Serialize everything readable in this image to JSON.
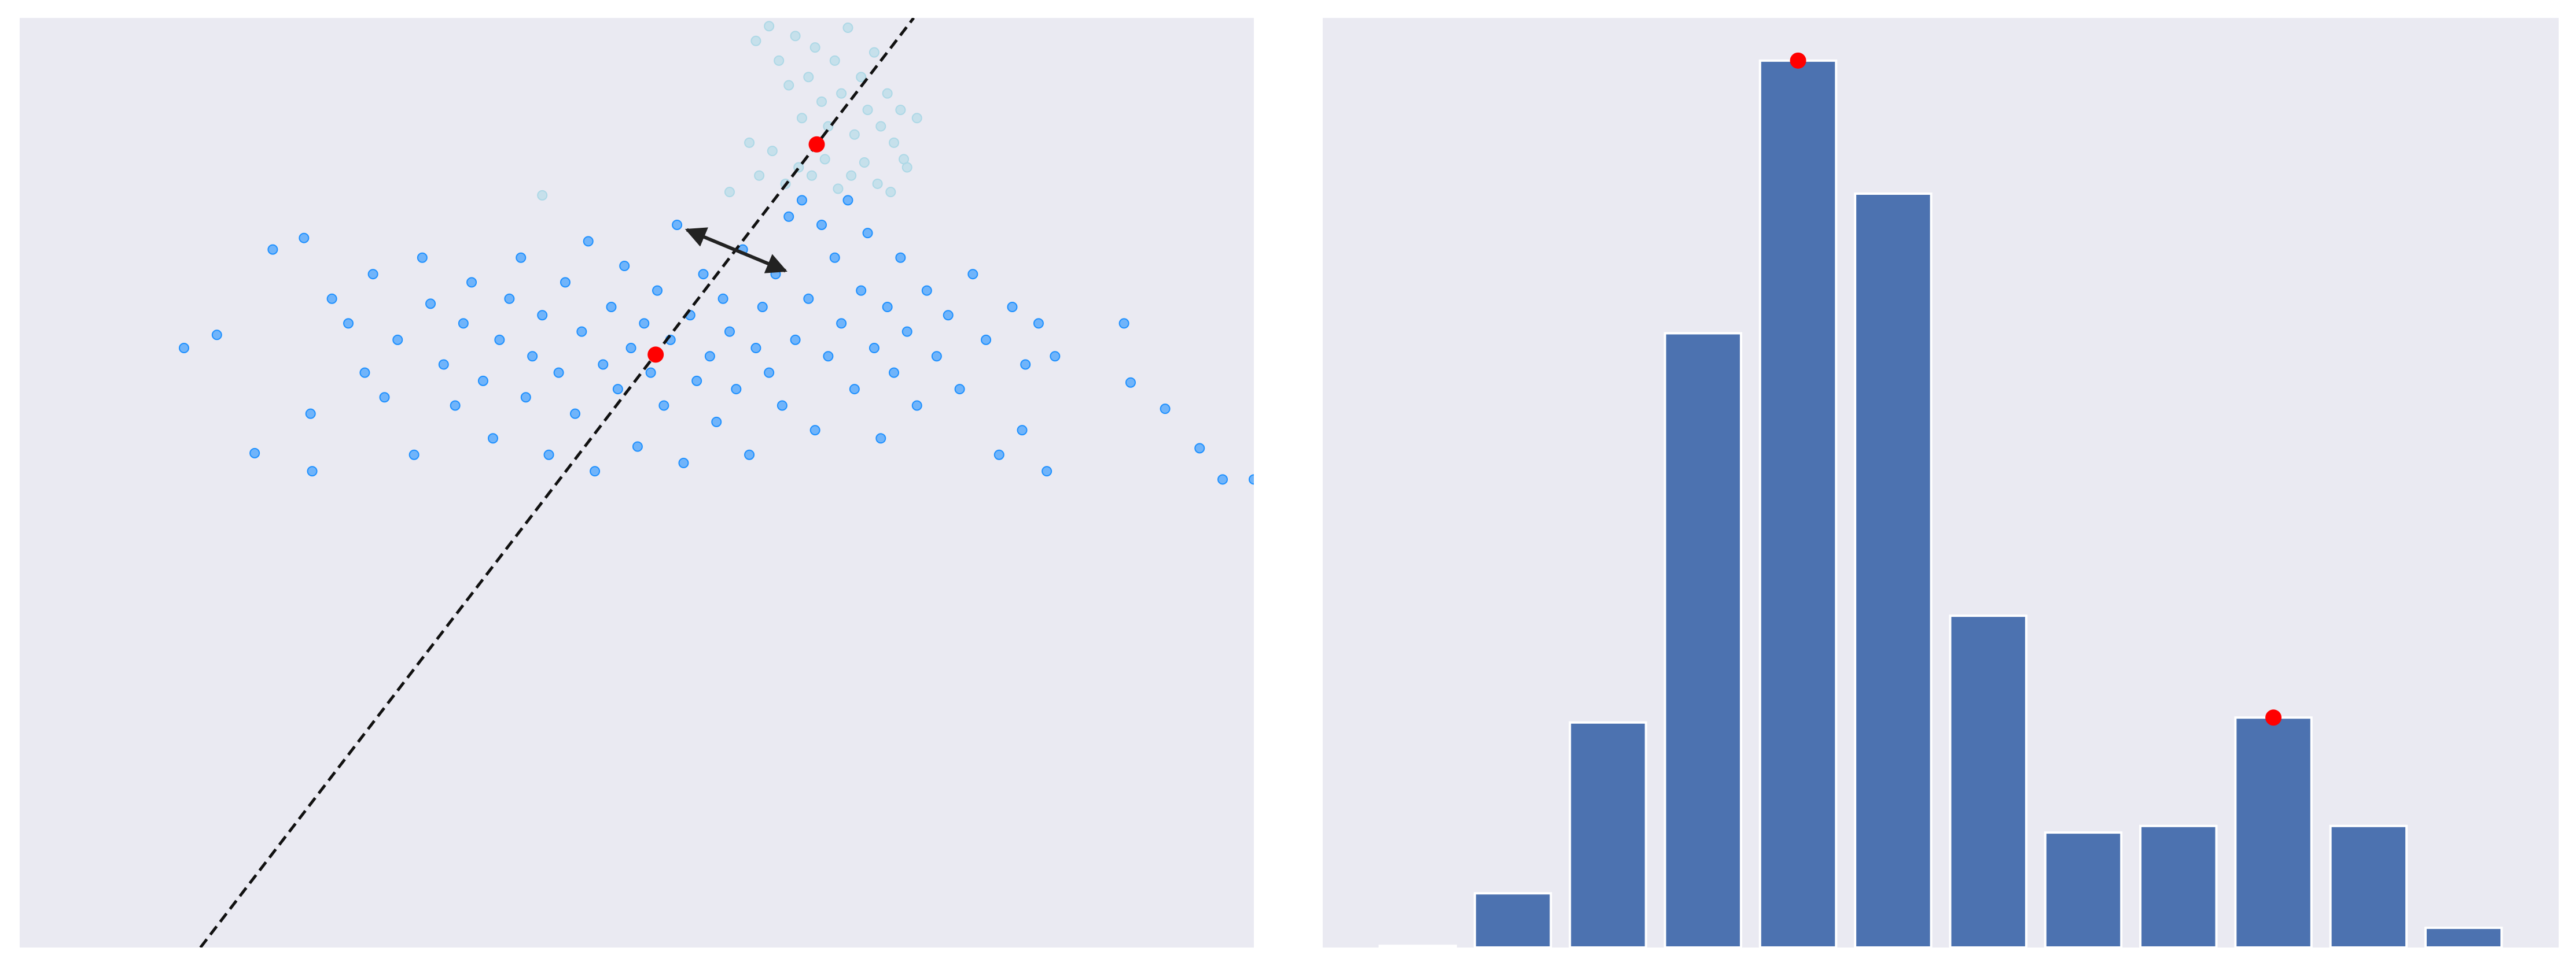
{
  "chart_data": [
    {
      "type": "scatter",
      "background": "#eaeaf2",
      "xlim": [
        0,
        751
      ],
      "ylim": [
        0,
        566
      ],
      "series": [
        {
          "color": "#add8e6",
          "x": [
            448,
            456,
            462,
            468,
            472,
            476,
            480,
            484,
            488,
            492,
            496,
            500,
            504,
            508,
            512,
            516,
            520,
            524,
            528,
            532,
            536,
            540,
            444,
            450,
            458,
            466,
            474,
            482,
            490,
            498,
            506,
            514,
            522,
            530,
            538,
            546,
            318,
            432
          ],
          "y": [
            552,
            561,
            540,
            525,
            555,
            505,
            530,
            548,
            515,
            500,
            540,
            520,
            560,
            495,
            530,
            510,
            545,
            500,
            520,
            490,
            510,
            475,
            490,
            470,
            485,
            465,
            475,
            470,
            480,
            462,
            470,
            478,
            465,
            460,
            480,
            505,
            458,
            460
          ]
        },
        {
          "color": "#1e90ff",
          "x": [
            100,
            120,
            143,
            154,
            173,
            177,
            178,
            190,
            200,
            210,
            215,
            222,
            230,
            240,
            245,
            250,
            258,
            265,
            270,
            275,
            282,
            288,
            292,
            298,
            305,
            308,
            312,
            318,
            322,
            328,
            332,
            338,
            342,
            346,
            350,
            355,
            360,
            364,
            368,
            372,
            376,
            380,
            384,
            388,
            392,
            396,
            400,
            404,
            408,
            412,
            416,
            420,
            424,
            428,
            432,
            436,
            440,
            444,
            448,
            452,
            456,
            460,
            464,
            468,
            472,
            476,
            480,
            484,
            488,
            492,
            496,
            500,
            504,
            508,
            512,
            516,
            520,
            524,
            528,
            532,
            536,
            540,
            546,
            552,
            558,
            565,
            572,
            580,
            588,
            596,
            604,
            612,
            620,
            630,
            610,
            625,
            672,
            676,
            697,
            718,
            732,
            751
          ],
          "y": [
            365,
            373,
            301,
            425,
            432,
            325,
            290,
            395,
            380,
            350,
            410,
            335,
            370,
            300,
            420,
            392,
            355,
            330,
            380,
            405,
            345,
            310,
            370,
            395,
            420,
            335,
            360,
            385,
            300,
            350,
            405,
            325,
            375,
            430,
            290,
            355,
            390,
            340,
            415,
            365,
            305,
            380,
            350,
            400,
            330,
            370,
            440,
            295,
            385,
            345,
            410,
            360,
            320,
            395,
            375,
            340,
            425,
            300,
            365,
            390,
            350,
            410,
            330,
            445,
            370,
            455,
            395,
            315,
            440,
            360,
            420,
            380,
            455,
            340,
            400,
            435,
            365,
            310,
            390,
            350,
            420,
            375,
            330,
            400,
            360,
            385,
            340,
            410,
            370,
            300,
            390,
            355,
            380,
            360,
            315,
            290,
            380,
            344,
            328,
            304,
            285,
            285
          ]
        }
      ],
      "lines": [
        {
          "color": "#111111",
          "style": "dashed",
          "x": [
            110,
            544
          ],
          "y": [
            0,
            566
          ]
        }
      ],
      "arrows": [
        {
          "color": "#222222",
          "x": [
            406,
            466
          ],
          "y": [
            437,
            412
          ]
        }
      ],
      "highlight": {
        "color": "#ff0000",
        "x": [
          485,
          387
        ],
        "y": [
          489,
          361
        ]
      }
    },
    {
      "type": "bar",
      "background": "#eaeaf2",
      "color": "#4c72b0",
      "xlim": [
        -1,
        12
      ],
      "ylim": [
        0,
        566
      ],
      "x": [
        0,
        1,
        2,
        3,
        4,
        5,
        6,
        7,
        8,
        9,
        10,
        11
      ],
      "values": [
        1,
        33,
        137,
        374,
        540,
        459,
        202,
        70,
        74,
        140,
        74,
        12
      ],
      "highlight": {
        "color": "#ff0000",
        "x": [
          4,
          9
        ],
        "values": [
          540,
          140
        ]
      }
    }
  ]
}
